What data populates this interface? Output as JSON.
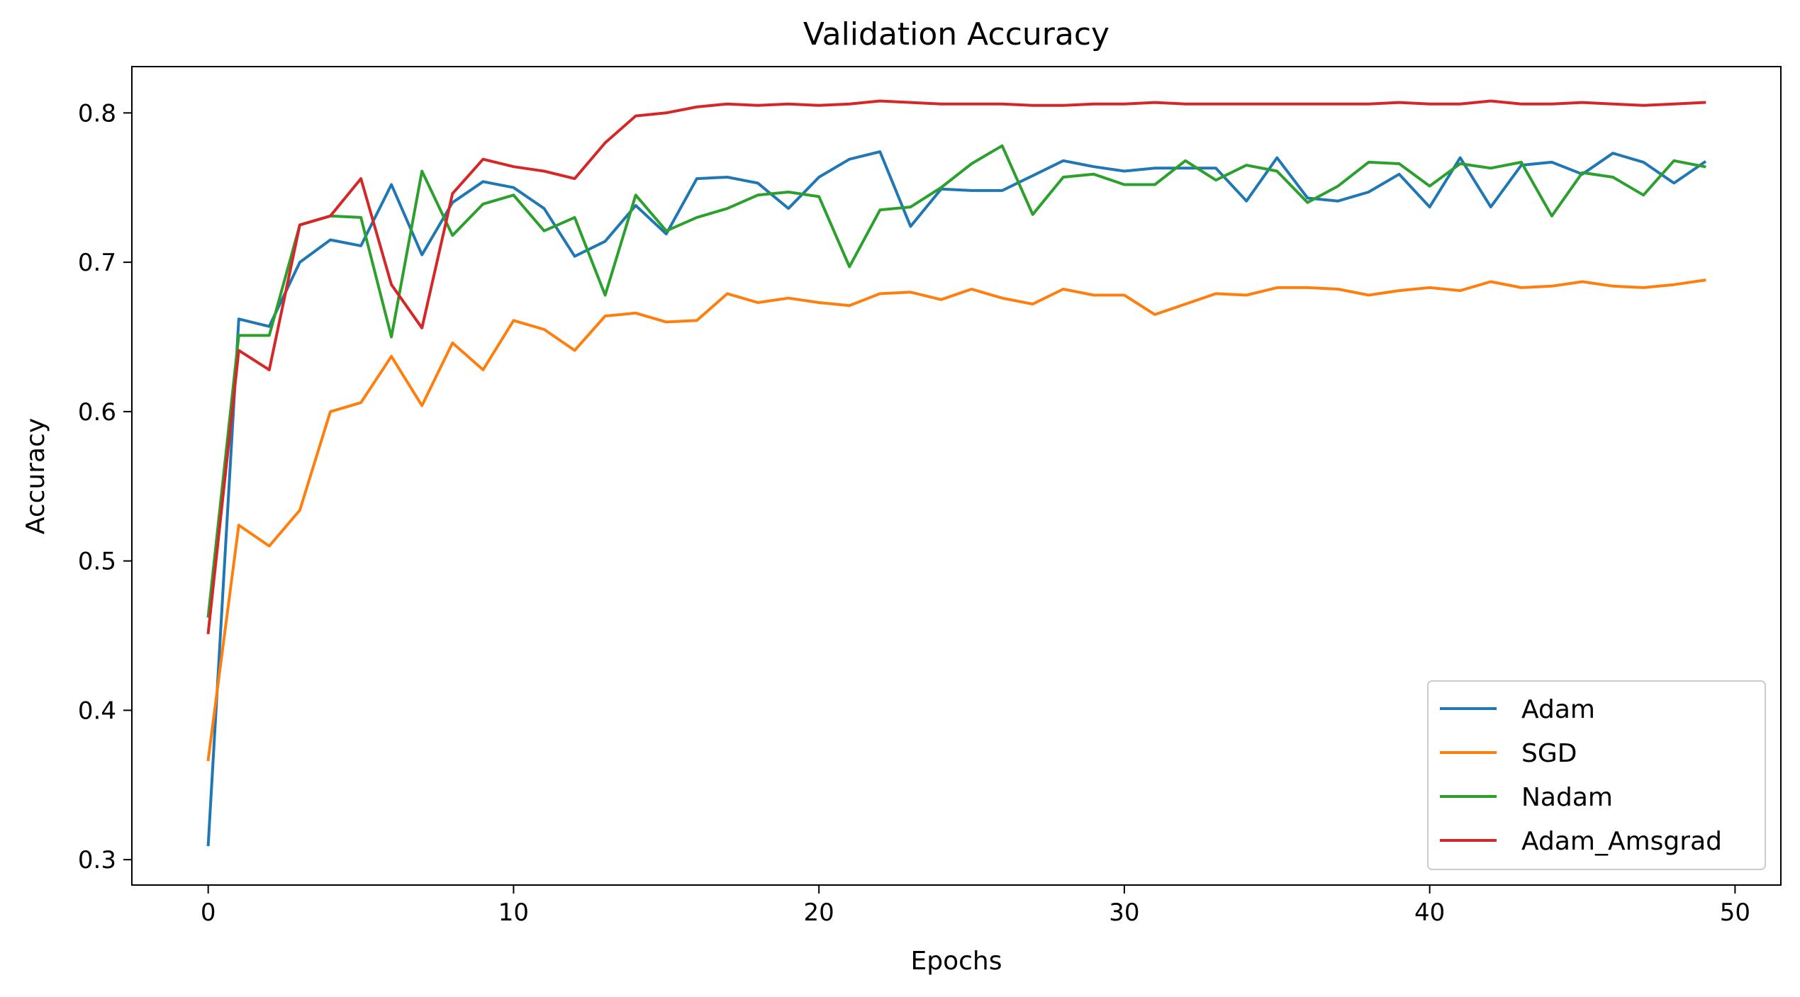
{
  "chart_data": {
    "type": "line",
    "title": "Validation Accuracy",
    "xlabel": "Epochs",
    "ylabel": "Accuracy",
    "xlim": [
      -2.5,
      51.5
    ],
    "ylim": [
      0.283,
      0.831
    ],
    "xticks": [
      0,
      10,
      20,
      30,
      40,
      50
    ],
    "yticks": [
      0.3,
      0.4,
      0.5,
      0.6,
      0.7,
      0.8
    ],
    "xtick_labels": [
      "0",
      "10",
      "20",
      "30",
      "40",
      "50"
    ],
    "ytick_labels": [
      "0.3",
      "0.4",
      "0.5",
      "0.6",
      "0.7",
      "0.8"
    ],
    "grid": false,
    "legend_position": "lower-right",
    "x": [
      0,
      1,
      2,
      3,
      4,
      5,
      6,
      7,
      8,
      9,
      10,
      11,
      12,
      13,
      14,
      15,
      16,
      17,
      18,
      19,
      20,
      21,
      22,
      23,
      24,
      25,
      26,
      27,
      28,
      29,
      30,
      31,
      32,
      33,
      34,
      35,
      36,
      37,
      38,
      39,
      40,
      41,
      42,
      43,
      44,
      45,
      46,
      47,
      48,
      49
    ],
    "series": [
      {
        "name": "Adam",
        "color": "#1f77b4",
        "values": [
          0.31,
          0.662,
          0.657,
          0.7,
          0.715,
          0.711,
          0.752,
          0.705,
          0.74,
          0.754,
          0.75,
          0.736,
          0.704,
          0.714,
          0.738,
          0.719,
          0.756,
          0.757,
          0.753,
          0.736,
          0.757,
          0.769,
          0.774,
          0.724,
          0.749,
          0.748,
          0.748,
          0.758,
          0.768,
          0.764,
          0.761,
          0.763,
          0.763,
          0.763,
          0.741,
          0.77,
          0.743,
          0.741,
          0.747,
          0.759,
          0.737,
          0.77,
          0.737,
          0.765,
          0.767,
          0.759,
          0.773,
          0.767,
          0.753,
          0.767
        ]
      },
      {
        "name": "SGD",
        "color": "#ff7f0e",
        "values": [
          0.367,
          0.524,
          0.51,
          0.534,
          0.6,
          0.606,
          0.637,
          0.604,
          0.646,
          0.628,
          0.661,
          0.655,
          0.641,
          0.664,
          0.666,
          0.66,
          0.661,
          0.679,
          0.673,
          0.676,
          0.673,
          0.671,
          0.679,
          0.68,
          0.675,
          0.682,
          0.676,
          0.672,
          0.682,
          0.678,
          0.678,
          0.665,
          0.672,
          0.679,
          0.678,
          0.683,
          0.683,
          0.682,
          0.678,
          0.681,
          0.683,
          0.681,
          0.687,
          0.683,
          0.684,
          0.687,
          0.684,
          0.683,
          0.685,
          0.688
        ]
      },
      {
        "name": "Nadam",
        "color": "#2ca02c",
        "values": [
          0.463,
          0.651,
          0.651,
          0.725,
          0.731,
          0.73,
          0.65,
          0.761,
          0.718,
          0.739,
          0.745,
          0.721,
          0.73,
          0.678,
          0.745,
          0.721,
          0.73,
          0.736,
          0.745,
          0.747,
          0.744,
          0.697,
          0.735,
          0.737,
          0.75,
          0.766,
          0.778,
          0.732,
          0.757,
          0.759,
          0.752,
          0.752,
          0.768,
          0.755,
          0.765,
          0.761,
          0.74,
          0.751,
          0.767,
          0.766,
          0.751,
          0.766,
          0.763,
          0.767,
          0.731,
          0.76,
          0.757,
          0.745,
          0.768,
          0.764
        ]
      },
      {
        "name": "Adam_Amsgrad",
        "color": "#d62728",
        "values": [
          0.452,
          0.641,
          0.628,
          0.725,
          0.731,
          0.756,
          0.685,
          0.656,
          0.746,
          0.769,
          0.764,
          0.761,
          0.756,
          0.78,
          0.798,
          0.8,
          0.804,
          0.806,
          0.805,
          0.806,
          0.805,
          0.806,
          0.808,
          0.807,
          0.806,
          0.806,
          0.806,
          0.805,
          0.805,
          0.806,
          0.806,
          0.807,
          0.806,
          0.806,
          0.806,
          0.806,
          0.806,
          0.806,
          0.806,
          0.807,
          0.806,
          0.806,
          0.808,
          0.806,
          0.806,
          0.807,
          0.806,
          0.805,
          0.806,
          0.807
        ]
      }
    ]
  }
}
